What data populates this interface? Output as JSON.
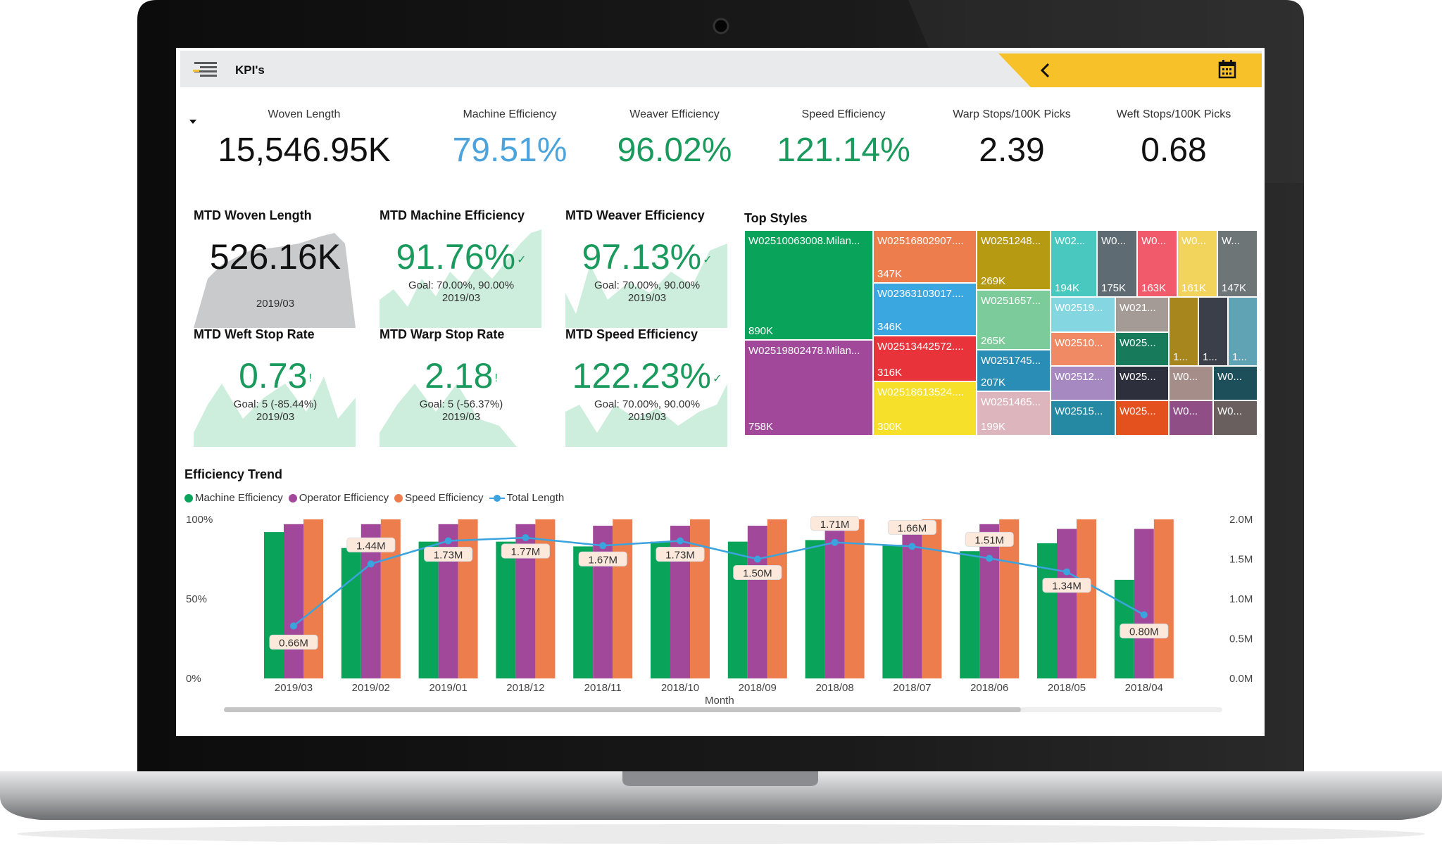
{
  "header": {
    "title": "KPI's"
  },
  "kpis": [
    {
      "label": "Woven Length",
      "value": "15,546.95K",
      "color": "#111111"
    },
    {
      "label": "Machine Efficiency",
      "value": "79.51%",
      "color": "#4da3dc"
    },
    {
      "label": "Weaver Efficiency",
      "value": "96.02%",
      "color": "#1a9a5c"
    },
    {
      "label": "Speed Efficiency",
      "value": "121.14%",
      "color": "#1a9a5c"
    },
    {
      "label": "Warp Stops/100K Picks",
      "value": "2.39",
      "color": "#111111"
    },
    {
      "label": "Weft Stops/100K Picks",
      "value": "0.68",
      "color": "#111111"
    }
  ],
  "cards": [
    {
      "title": "MTD Woven Length",
      "value": "526.16K",
      "goal": "",
      "period": "2019/03",
      "color": "#111111",
      "mark": ""
    },
    {
      "title": "MTD Machine Efficiency",
      "value": "91.76%",
      "goal": "Goal: 70.00%, 90.00%",
      "period": "2019/03",
      "color": "#1a9a5c",
      "mark": "✓"
    },
    {
      "title": "MTD Weaver Efficiency",
      "value": "97.13%",
      "goal": "Goal: 70.00%, 90.00%",
      "period": "2019/03",
      "color": "#1a9a5c",
      "mark": "✓"
    },
    {
      "title": "MTD Weft Stop Rate",
      "value": "0.73",
      "goal": "Goal: 5 (-85.44%)",
      "period": "2019/03",
      "color": "#1a9a5c",
      "mark": "!"
    },
    {
      "title": "MTD Warp Stop Rate",
      "value": "2.18",
      "goal": "Goal: 5 (-56.37%)",
      "period": "2019/03",
      "color": "#1a9a5c",
      "mark": "!"
    },
    {
      "title": "MTD Speed Efficiency",
      "value": "122.23%",
      "goal": "Goal: 70.00%, 90.00%",
      "period": "2019/03",
      "color": "#1a9a5c",
      "mark": "✓"
    }
  ],
  "treemap": {
    "title": "Top Styles",
    "cells": [
      {
        "name": "W02510063008.Milan...",
        "value": "890K",
        "color": "#0aa35a"
      },
      {
        "name": "W02519802478.Milan...",
        "value": "758K",
        "color": "#a2489b"
      },
      {
        "name": "W02516802907....",
        "value": "347K",
        "color": "#ee7d4e"
      },
      {
        "name": "W02363103017....",
        "value": "346K",
        "color": "#3aa7e1"
      },
      {
        "name": "W02513442572....",
        "value": "316K",
        "color": "#e8333a"
      },
      {
        "name": "W02518613524....",
        "value": "300K",
        "color": "#f7e02a"
      },
      {
        "name": "W0251248...",
        "value": "269K",
        "color": "#b59a12"
      },
      {
        "name": "W0251657...",
        "value": "265K",
        "color": "#7ccb9a"
      },
      {
        "name": "W0251745...",
        "value": "207K",
        "color": "#2a8db5"
      },
      {
        "name": "W0251465...",
        "value": "199K",
        "color": "#ddb6bd"
      },
      {
        "name": "W02...",
        "value": "194K",
        "color": "#49c8c0"
      },
      {
        "name": "W0...",
        "value": "175K",
        "color": "#5f6b73"
      },
      {
        "name": "W0...",
        "value": "163K",
        "color": "#f05a6a"
      },
      {
        "name": "W0...",
        "value": "161K",
        "color": "#f2d35b"
      },
      {
        "name": "W...",
        "value": "147K",
        "color": "#6e7577"
      },
      {
        "name": "W02519...",
        "value": "",
        "color": "#84d6e0"
      },
      {
        "name": "W021...",
        "value": "",
        "color": "#a49a96"
      },
      {
        "name": "W02510...",
        "value": "",
        "color": "#f08a65"
      },
      {
        "name": "W025...",
        "value": "",
        "color": "#177b5b"
      },
      {
        "name": "W02512...",
        "value": "",
        "color": "#a789c2"
      },
      {
        "name": "W025...",
        "value": "",
        "color": "#2d2f3d"
      },
      {
        "name": "W02515...",
        "value": "",
        "color": "#2589a4"
      },
      {
        "name": "W025...",
        "value": "",
        "color": "#e5501f"
      },
      {
        "name": "1...",
        "value": "",
        "color": "#a8861e"
      },
      {
        "name": "1...",
        "value": "",
        "color": "#3a3f49"
      },
      {
        "name": "1...",
        "value": "",
        "color": "#5fa3b4"
      },
      {
        "name": "W0...",
        "value": "",
        "color": "#a58d8a"
      },
      {
        "name": "W0...",
        "value": "",
        "color": "#1c4f5a"
      },
      {
        "name": "W0...",
        "value": "",
        "color": "#8f4f86"
      },
      {
        "name": "W0...",
        "value": "",
        "color": "#6a5f5f"
      }
    ]
  },
  "trend": {
    "title": "Efficiency Trend",
    "legend": [
      {
        "label": "Machine Efficiency",
        "color": "#0aa35a"
      },
      {
        "label": "Operator Efficiency",
        "color": "#a2489b"
      },
      {
        "label": "Speed Efficiency",
        "color": "#ee7d4e"
      },
      {
        "label": "Total Length",
        "color": "#3ba3dd"
      }
    ],
    "left_ticks": [
      "100%",
      "50%",
      "0%"
    ],
    "right_ticks": [
      "2.0M",
      "1.5M",
      "1.0M",
      "0.5M",
      "0.0M"
    ],
    "xlabel": "Month"
  },
  "chart_data": {
    "type": "bar",
    "title": "Efficiency Trend",
    "xlabel": "Month",
    "ylabel": "",
    "ylim": [
      0,
      100
    ],
    "y2lim": [
      0,
      2.0
    ],
    "categories": [
      "2019/03",
      "2019/02",
      "2019/01",
      "2018/12",
      "2018/11",
      "2018/10",
      "2018/09",
      "2018/08",
      "2018/07",
      "2018/06",
      "2018/05",
      "2018/04"
    ],
    "series": [
      {
        "name": "Machine Efficiency",
        "type": "bar",
        "values": [
          92,
          82,
          86,
          86,
          83,
          86,
          86,
          87,
          84,
          80,
          85,
          62
        ]
      },
      {
        "name": "Operator Efficiency",
        "type": "bar",
        "values": [
          97,
          97,
          97,
          97,
          96,
          96,
          96,
          97,
          97,
          97,
          94,
          94
        ]
      },
      {
        "name": "Speed Efficiency",
        "type": "bar",
        "values": [
          100,
          100,
          100,
          100,
          100,
          100,
          100,
          100,
          100,
          100,
          100,
          100
        ]
      },
      {
        "name": "Total Length",
        "type": "line",
        "axis": "right",
        "values": [
          0.66,
          1.44,
          1.73,
          1.77,
          1.67,
          1.73,
          1.5,
          1.71,
          1.66,
          1.51,
          1.34,
          0.8
        ],
        "labels": [
          "0.66M",
          "1.44M",
          "1.73M",
          "1.77M",
          "1.67M",
          "1.73M",
          "1.50M",
          "1.71M",
          "1.66M",
          "1.51M",
          "1.34M",
          "0.80M"
        ]
      }
    ]
  }
}
